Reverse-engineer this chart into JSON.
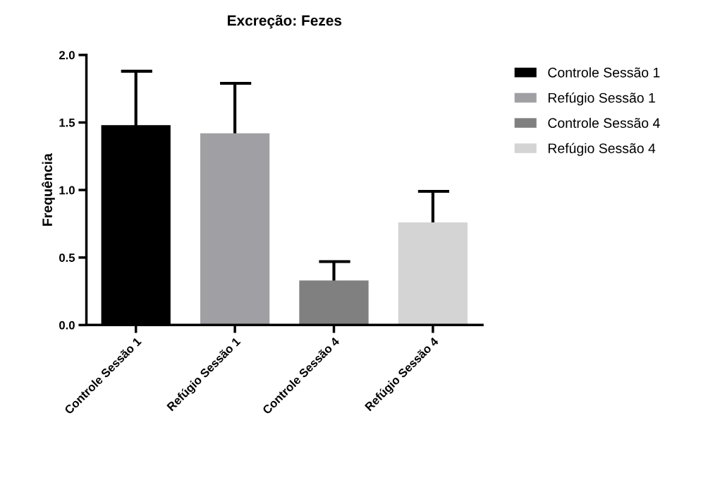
{
  "chart_data": {
    "type": "bar",
    "title": "Excreção: Fezes",
    "ylabel": "Frequência",
    "categories": [
      "Controle Sessão 1",
      "Refúgio Sessão 1",
      "Controle Sessão 4",
      "Refúgio Sessão 4"
    ],
    "series": [
      {
        "name": "Controle Sessão 1",
        "color": "#000000",
        "values": [
          1.48,
          null,
          null,
          null
        ],
        "errors": [
          [
            1.48,
            1.88
          ],
          null,
          null,
          null
        ]
      },
      {
        "name": "Refúgio Sessão 1",
        "color": "#a0a0a4",
        "values": [
          null,
          1.42,
          null,
          null
        ],
        "errors": [
          null,
          [
            1.42,
            1.79
          ],
          null,
          null
        ]
      },
      {
        "name": "Controle Sessão 4",
        "color": "#808080",
        "values": [
          null,
          null,
          0.33,
          null
        ],
        "errors": [
          null,
          null,
          [
            0.33,
            0.47
          ],
          null
        ]
      },
      {
        "name": "Refúgio Sessão 4",
        "color": "#d4d4d4",
        "values": [
          null,
          null,
          null,
          0.76
        ],
        "errors": [
          null,
          null,
          null,
          [
            0.76,
            0.99
          ]
        ]
      }
    ],
    "ylim": [
      0,
      2.0
    ],
    "yticks": [
      {
        "value": 0,
        "label": "0.0"
      },
      {
        "value": 0.5,
        "label": "0.5"
      },
      {
        "value": 1.0,
        "label": "1.0"
      },
      {
        "value": 1.5,
        "label": "1.5"
      },
      {
        "value": 2.0,
        "label": "2.0"
      }
    ],
    "grid": false,
    "legend": "top right"
  }
}
